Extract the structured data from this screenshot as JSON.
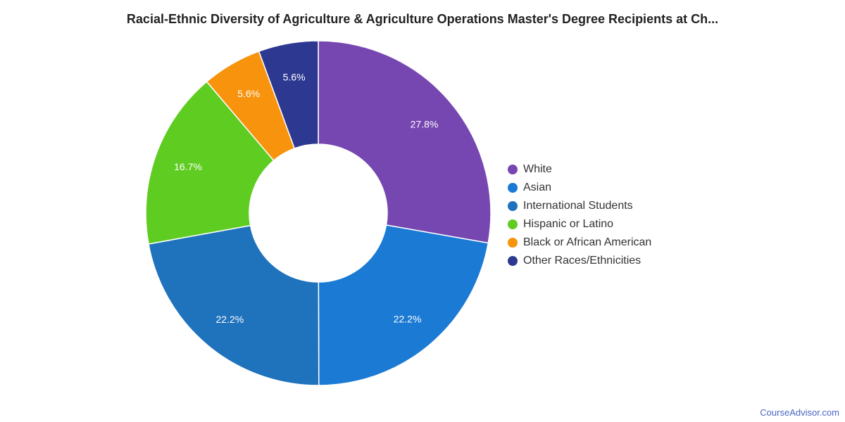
{
  "chart_data": {
    "type": "pie",
    "title": "Racial-Ethnic Diversity of Agriculture & Agriculture Operations Master's Degree Recipients at Ch...",
    "categories": [
      "White",
      "Asian",
      "International Students",
      "Hispanic or Latino",
      "Black or African American",
      "Other Races/Ethnicities"
    ],
    "values": [
      27.8,
      22.2,
      22.2,
      16.7,
      5.6,
      5.6
    ],
    "labels": [
      "27.8%",
      "22.2%",
      "22.2%",
      "16.7%",
      "5.6%",
      "5.6%"
    ],
    "colors": [
      "#7647b1",
      "#1a7ad4",
      "#1f72bc",
      "#5fcc22",
      "#f7930d",
      "#2d3891"
    ],
    "donut": true,
    "legend": "right"
  },
  "watermark": "CourseAdvisor.com"
}
